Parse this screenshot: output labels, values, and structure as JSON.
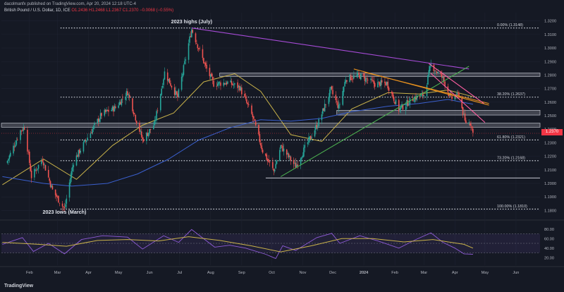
{
  "header": {
    "byline": "dacolmanfx published on TradingView.com, Apr 20, 2024 12:18 UTC-4",
    "symbol": "British Pound / U.S. Dollar, 1D, ICE",
    "ohlc": "O1.2436 H1.2468 L1.2367 C1.2370 −0.0068 (−0.55%)"
  },
  "branding": {
    "logo_text": "TradingView"
  },
  "colors": {
    "background": "#151924",
    "up_candle": "#26a69a",
    "down_candle": "#ef5350",
    "ma_fast": "#c9b24a",
    "ma_slow": "#3a5fcd",
    "trendline_purple": "#a64bd6",
    "trendline_green": "#4caf50",
    "channel_orange": "#e6901e",
    "channel_pink": "#ff5fa2",
    "rsi_line": "#8e5bd6",
    "rsi_ma": "#c9b24a",
    "last_price_tag": "#f23645"
  },
  "chart_data": [
    {
      "type": "candlestick",
      "x_tick_labels": [
        "Feb",
        "Mar",
        "Apr",
        "May",
        "Jun",
        "Jul",
        "Aug",
        "Sep",
        "Oct",
        "Nov",
        "Dec",
        "2024",
        "Feb",
        "Mar",
        "Apr",
        "May",
        "Jun"
      ],
      "y_tick_labels": [
        "1.3200",
        "1.3100",
        "1.3000",
        "1.2900",
        "1.2800",
        "1.2700",
        "1.2600",
        "1.2500",
        "1.2400",
        "1.2300",
        "1.2200",
        "1.2100",
        "1.2000",
        "1.1900",
        "1.1800"
      ],
      "ylim": [
        1.175,
        1.324
      ],
      "last_price": 1.237,
      "last_price_label": "1.2370",
      "fibonacci_levels": [
        {
          "label": "0.00% (1.3148)",
          "value": 1.3148
        },
        {
          "label": "38.20% (1.2637)",
          "value": 1.2637
        },
        {
          "label": "61.80% (1.2321)",
          "value": 1.2321
        },
        {
          "label": "73.20% (1.2168)",
          "value": 1.2168
        },
        {
          "label": "100.00% (1.1810)",
          "value": 1.181
        }
      ],
      "horizontal_zones": [
        {
          "low": 1.279,
          "high": 1.2815
        },
        {
          "low": 1.2505,
          "high": 1.254
        },
        {
          "low": 1.2415,
          "high": 1.2445
        }
      ],
      "support_line": 1.204,
      "annotations": [
        {
          "text": "2023 highs (July)",
          "x": "2023-07-13",
          "y": 1.3148
        },
        {
          "text": "2023 lows (March)",
          "x": "2023-03-08",
          "y": 1.181
        }
      ],
      "trendlines": [
        {
          "name": "purple",
          "from": [
            "2023-07-13",
            1.3148
          ],
          "to": [
            "2024-04-15",
            1.2845
          ]
        },
        {
          "name": "green",
          "from": [
            "2023-10-10",
            1.205
          ],
          "to": [
            "2024-04-15",
            1.2865
          ]
        },
        {
          "name": "orange-1",
          "from": [
            "2023-12-22",
            1.2845
          ],
          "to": [
            "2024-05-05",
            1.2578
          ]
        },
        {
          "name": "orange-2",
          "from": [
            "2024-01-02",
            1.282
          ],
          "to": [
            "2024-05-05",
            1.259
          ]
        },
        {
          "name": "pink-1",
          "from": [
            "2024-03-06",
            1.2885
          ],
          "to": [
            "2024-04-30",
            1.259
          ]
        },
        {
          "name": "pink-2",
          "from": [
            "2024-03-08",
            1.2812
          ],
          "to": [
            "2024-05-01",
            1.245
          ]
        }
      ],
      "price_path": [
        [
          "2023-01-09",
          1.215
        ],
        [
          "2023-01-23",
          1.239
        ],
        [
          "2023-01-27",
          1.2415
        ],
        [
          "2023-02-03",
          1.205
        ],
        [
          "2023-02-14",
          1.218
        ],
        [
          "2023-02-24",
          1.195
        ],
        [
          "2023-03-08",
          1.181
        ],
        [
          "2023-03-17",
          1.216
        ],
        [
          "2023-03-31",
          1.234
        ],
        [
          "2023-04-14",
          1.251
        ],
        [
          "2023-04-28",
          1.256
        ],
        [
          "2023-05-10",
          1.2675
        ],
        [
          "2023-05-25",
          1.232
        ],
        [
          "2023-06-06",
          1.244
        ],
        [
          "2023-06-16",
          1.282
        ],
        [
          "2023-06-29",
          1.2635
        ],
        [
          "2023-07-13",
          1.314
        ],
        [
          "2023-07-27",
          1.286
        ],
        [
          "2023-08-04",
          1.2735
        ],
        [
          "2023-08-18",
          1.2745
        ],
        [
          "2023-08-30",
          1.271
        ],
        [
          "2023-09-12",
          1.249
        ],
        [
          "2023-09-22",
          1.224
        ],
        [
          "2023-10-03",
          1.209
        ],
        [
          "2023-10-10",
          1.2275
        ],
        [
          "2023-10-25",
          1.2125
        ],
        [
          "2023-11-03",
          1.226
        ],
        [
          "2023-11-17",
          1.2455
        ],
        [
          "2023-11-29",
          1.269
        ],
        [
          "2023-12-07",
          1.256
        ],
        [
          "2023-12-14",
          1.2775
        ],
        [
          "2023-12-28",
          1.2795
        ],
        [
          "2024-01-12",
          1.2735
        ],
        [
          "2024-01-24",
          1.274
        ],
        [
          "2024-02-05",
          1.2545
        ],
        [
          "2024-02-20",
          1.263
        ],
        [
          "2024-03-01",
          1.2655
        ],
        [
          "2024-03-08",
          1.2875
        ],
        [
          "2024-03-20",
          1.2775
        ],
        [
          "2024-03-28",
          1.2625
        ],
        [
          "2024-04-05",
          1.2655
        ],
        [
          "2024-04-11",
          1.2455
        ],
        [
          "2024-04-17",
          1.2445
        ],
        [
          "2024-04-19",
          1.237
        ]
      ],
      "moving_averages": [
        {
          "name": "fast",
          "path": [
            [
              "2023-01-05",
              1.199
            ],
            [
              "2023-02-15",
              1.218
            ],
            [
              "2023-03-20",
              1.203
            ],
            [
              "2023-04-25",
              1.228
            ],
            [
              "2023-05-25",
              1.243
            ],
            [
              "2023-06-25",
              1.252
            ],
            [
              "2023-07-25",
              1.275
            ],
            [
              "2023-08-25",
              1.281
            ],
            [
              "2023-09-20",
              1.268
            ],
            [
              "2023-10-20",
              1.236
            ],
            [
              "2023-11-20",
              1.231
            ],
            [
              "2023-12-20",
              1.255
            ],
            [
              "2024-01-25",
              1.267
            ],
            [
              "2024-02-25",
              1.266
            ],
            [
              "2024-03-25",
              1.269
            ],
            [
              "2024-04-19",
              1.264
            ]
          ]
        },
        {
          "name": "slow",
          "path": [
            [
              "2023-01-05",
              1.205
            ],
            [
              "2023-02-15",
              1.2
            ],
            [
              "2023-03-15",
              1.198
            ],
            [
              "2023-04-20",
              1.2
            ],
            [
              "2023-05-20",
              1.207
            ],
            [
              "2023-06-20",
              1.218
            ],
            [
              "2023-07-20",
              1.232
            ],
            [
              "2023-08-20",
              1.241
            ],
            [
              "2023-09-20",
              1.247
            ],
            [
              "2023-10-20",
              1.246
            ],
            [
              "2023-11-20",
              1.248
            ],
            [
              "2023-12-20",
              1.253
            ],
            [
              "2024-01-25",
              1.257
            ],
            [
              "2024-02-25",
              1.259
            ],
            [
              "2024-03-25",
              1.262
            ],
            [
              "2024-04-19",
              1.2585
            ]
          ]
        }
      ]
    },
    {
      "type": "line",
      "panel": "oscillator",
      "y_tick_labels": [
        "80.00",
        "60.00",
        "40.00",
        "20.00"
      ],
      "ylim": [
        10,
        90
      ],
      "reference_levels": [
        70,
        50,
        30
      ],
      "series": [
        {
          "values": [
            [
              "2023-01-05",
              48
            ],
            [
              "2023-01-25",
              62
            ],
            [
              "2023-02-05",
              33
            ],
            [
              "2023-02-20",
              50
            ],
            [
              "2023-03-08",
              28
            ],
            [
              "2023-03-25",
              58
            ],
            [
              "2023-04-15",
              66
            ],
            [
              "2023-05-10",
              63
            ],
            [
              "2023-05-25",
              38
            ],
            [
              "2023-06-15",
              66
            ],
            [
              "2023-06-30",
              52
            ],
            [
              "2023-07-13",
              79
            ],
            [
              "2023-08-05",
              42
            ],
            [
              "2023-08-20",
              46
            ],
            [
              "2023-09-05",
              40
            ],
            [
              "2023-09-25",
              27
            ],
            [
              "2023-10-05",
              18
            ],
            [
              "2023-10-12",
              45
            ],
            [
              "2023-10-25",
              35
            ],
            [
              "2023-11-15",
              62
            ],
            [
              "2023-11-30",
              71
            ],
            [
              "2023-12-08",
              50
            ],
            [
              "2023-12-28",
              66
            ],
            [
              "2024-01-15",
              55
            ],
            [
              "2024-02-05",
              40
            ],
            [
              "2024-02-22",
              58
            ],
            [
              "2024-03-08",
              72
            ],
            [
              "2024-03-20",
              52
            ],
            [
              "2024-04-01",
              40
            ],
            [
              "2024-04-10",
              28
            ],
            [
              "2024-04-19",
              27
            ]
          ]
        },
        {
          "values": [
            [
              "2023-01-05",
              52
            ],
            [
              "2023-02-10",
              48
            ],
            [
              "2023-03-10",
              44
            ],
            [
              "2023-04-10",
              56
            ],
            [
              "2023-05-10",
              58
            ],
            [
              "2023-06-10",
              55
            ],
            [
              "2023-07-10",
              64
            ],
            [
              "2023-08-10",
              56
            ],
            [
              "2023-09-10",
              45
            ],
            [
              "2023-10-10",
              32
            ],
            [
              "2023-11-10",
              45
            ],
            [
              "2023-12-10",
              60
            ],
            [
              "2024-01-10",
              60
            ],
            [
              "2024-02-10",
              53
            ],
            [
              "2024-03-10",
              58
            ],
            [
              "2024-04-10",
              48
            ],
            [
              "2024-04-19",
              40
            ]
          ]
        }
      ]
    }
  ]
}
